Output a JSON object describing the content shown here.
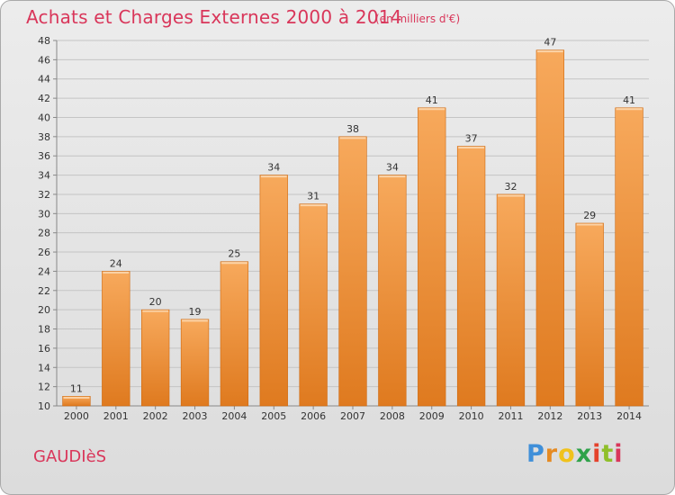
{
  "header": {
    "title": "Achats et Charges Externes 2000 à 2014",
    "subtitle": "(en milliers d'€)"
  },
  "footer": {
    "place": "GAUDIèS",
    "brand_letters": [
      "P",
      "r",
      "o",
      "x",
      "i",
      "t",
      "i"
    ]
  },
  "colors": {
    "title": "#d9365a",
    "bar_light": "#f7a95c",
    "bar_dark": "#df7a1f",
    "brand": [
      "#3f8fd9",
      "#e58a22",
      "#f0c21c",
      "#2fa24a",
      "#e5422c",
      "#8fbf2a",
      "#d9365a"
    ]
  },
  "chart_data": {
    "type": "bar",
    "categories": [
      "2000",
      "2001",
      "2002",
      "2003",
      "2004",
      "2005",
      "2006",
      "2007",
      "2008",
      "2009",
      "2010",
      "2011",
      "2012",
      "2013",
      "2014"
    ],
    "values": [
      11,
      24,
      20,
      19,
      25,
      34,
      31,
      38,
      34,
      41,
      37,
      32,
      47,
      29,
      41
    ],
    "title": "Achats et Charges Externes 2000 à 2014",
    "subtitle": "(en milliers d'€)",
    "xlabel": "",
    "ylabel": "",
    "ylim": [
      10,
      48
    ],
    "yticks": [
      10,
      12,
      14,
      16,
      18,
      20,
      22,
      24,
      26,
      28,
      30,
      32,
      34,
      36,
      38,
      40,
      42,
      44,
      46,
      48
    ],
    "grid": true,
    "data_labels": true
  }
}
